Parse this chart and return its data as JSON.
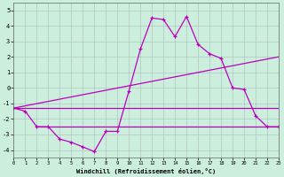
{
  "xlabel": "Windchill (Refroidissement éolien,°C)",
  "bg_color": "#cceedd",
  "line_color": "#bb00bb",
  "xlim": [
    0,
    23
  ],
  "ylim": [
    -4.5,
    5.5
  ],
  "yticks": [
    -4,
    -3,
    -2,
    -1,
    0,
    1,
    2,
    3,
    4,
    5
  ],
  "xticks": [
    0,
    1,
    2,
    3,
    4,
    5,
    6,
    7,
    8,
    9,
    10,
    11,
    12,
    13,
    14,
    15,
    16,
    17,
    18,
    19,
    20,
    21,
    22,
    23
  ],
  "main_x": [
    0,
    1,
    2,
    3,
    4,
    5,
    6,
    7,
    8,
    9,
    10,
    11,
    12,
    13,
    14,
    15,
    16,
    17,
    18,
    19,
    20,
    21,
    22,
    23
  ],
  "main_y": [
    -1.3,
    -1.5,
    -2.5,
    -2.5,
    -3.3,
    -3.5,
    -3.8,
    -4.1,
    -2.8,
    -2.8,
    -0.2,
    2.5,
    4.5,
    4.4,
    3.3,
    4.6,
    2.8,
    2.2,
    1.9,
    0.0,
    -0.1,
    -1.8,
    -2.5,
    -2.5
  ],
  "line1_x": [
    0,
    23
  ],
  "line1_y": [
    -1.3,
    2.0
  ],
  "line2_x": [
    0,
    23
  ],
  "line2_y": [
    -1.3,
    -1.3
  ],
  "line3_x": [
    2,
    23
  ],
  "line3_y": [
    -2.5,
    -2.5
  ]
}
